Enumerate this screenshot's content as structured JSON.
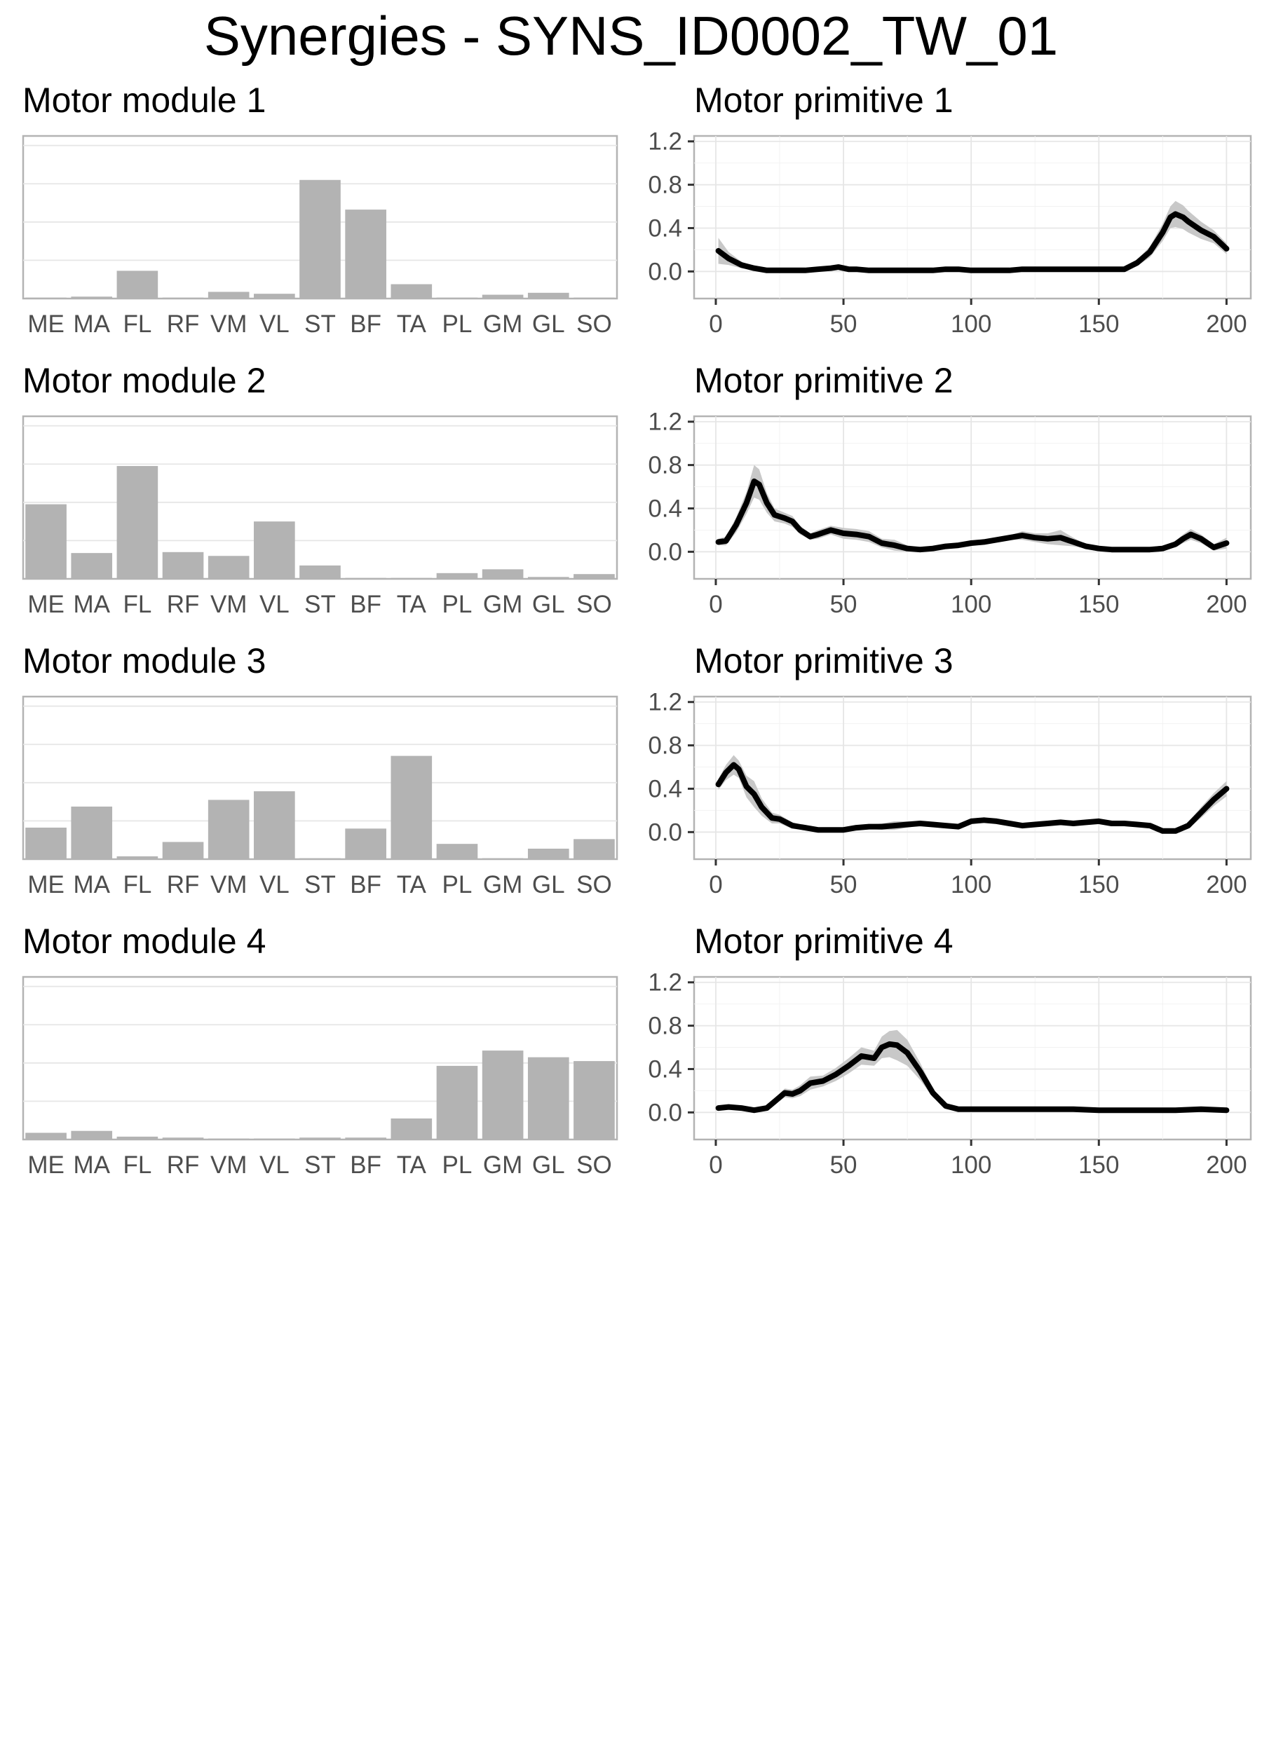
{
  "figure": {
    "title": "Synergies - SYNS_ID0002_TW_01"
  },
  "chart_data": [
    {
      "type": "bar",
      "title": "Motor module 1",
      "categories": [
        "ME",
        "MA",
        "FL",
        "RF",
        "VM",
        "VL",
        "ST",
        "BF",
        "TA",
        "PL",
        "GM",
        "GL",
        "SO"
      ],
      "values": [
        0.01,
        0.02,
        0.29,
        0.01,
        0.07,
        0.05,
        1.24,
        0.93,
        0.15,
        0.01,
        0.04,
        0.06,
        0.01
      ],
      "ylim": [
        0,
        1.7
      ],
      "y_tick_labels_shown": false,
      "grid": true
    },
    {
      "type": "area",
      "title": "Motor primitive 1",
      "x": [
        1,
        5,
        10,
        15,
        20,
        25,
        30,
        35,
        40,
        45,
        48,
        52,
        55,
        60,
        65,
        70,
        75,
        80,
        85,
        90,
        95,
        100,
        105,
        110,
        115,
        120,
        125,
        130,
        135,
        140,
        145,
        150,
        155,
        160,
        165,
        170,
        175,
        178,
        180,
        183,
        185,
        190,
        195,
        200
      ],
      "series": [
        {
          "values": [
            0.19,
            0.12,
            0.06,
            0.03,
            0.01,
            0.01,
            0.01,
            0.01,
            0.02,
            0.03,
            0.04,
            0.02,
            0.02,
            0.01,
            0.01,
            0.01,
            0.01,
            0.01,
            0.01,
            0.02,
            0.02,
            0.01,
            0.01,
            0.01,
            0.01,
            0.02,
            0.02,
            0.02,
            0.02,
            0.02,
            0.02,
            0.02,
            0.02,
            0.02,
            0.08,
            0.18,
            0.36,
            0.5,
            0.53,
            0.5,
            0.46,
            0.38,
            0.32,
            0.21
          ]
        }
      ],
      "band_halfwidth": [
        0.12,
        0.06,
        0.03,
        0.02,
        0.01,
        0.01,
        0.01,
        0.01,
        0.02,
        0.02,
        0.02,
        0.02,
        0.02,
        0.01,
        0.01,
        0.01,
        0.01,
        0.01,
        0.01,
        0.02,
        0.02,
        0.01,
        0.01,
        0.01,
        0.01,
        0.02,
        0.02,
        0.02,
        0.02,
        0.02,
        0.02,
        0.02,
        0.02,
        0.02,
        0.03,
        0.05,
        0.08,
        0.1,
        0.12,
        0.11,
        0.1,
        0.08,
        0.06,
        0.05
      ],
      "xlim": [
        -8.5,
        209.5
      ],
      "ylim": [
        -0.25,
        1.25
      ],
      "x_ticks": [
        0,
        50,
        100,
        150,
        200
      ],
      "y_ticks": [
        0.0,
        0.4,
        0.8,
        1.2
      ],
      "x_tick_labels": [
        "0",
        "50",
        "100",
        "150",
        "200"
      ],
      "y_tick_labels": [
        "0.0",
        "0.4",
        "0.8",
        "1.2"
      ],
      "grid": true
    },
    {
      "type": "bar",
      "title": "Motor module 2",
      "categories": [
        "ME",
        "MA",
        "FL",
        "RF",
        "VM",
        "VL",
        "ST",
        "BF",
        "TA",
        "PL",
        "GM",
        "GL",
        "SO"
      ],
      "values": [
        0.78,
        0.27,
        1.18,
        0.28,
        0.24,
        0.6,
        0.14,
        0.01,
        0.01,
        0.06,
        0.1,
        0.02,
        0.05
      ],
      "ylim": [
        0,
        1.7
      ],
      "y_tick_labels_shown": false,
      "grid": true
    },
    {
      "type": "area",
      "title": "Motor primitive 2",
      "x": [
        1,
        4,
        8,
        12,
        15,
        17,
        20,
        23,
        27,
        30,
        33,
        37,
        40,
        45,
        50,
        55,
        60,
        65,
        70,
        75,
        80,
        85,
        90,
        95,
        100,
        105,
        110,
        115,
        120,
        125,
        130,
        135,
        140,
        145,
        150,
        155,
        160,
        165,
        170,
        175,
        180,
        183,
        186,
        190,
        195,
        200
      ],
      "series": [
        {
          "values": [
            0.09,
            0.1,
            0.25,
            0.45,
            0.65,
            0.62,
            0.45,
            0.34,
            0.31,
            0.28,
            0.2,
            0.14,
            0.16,
            0.2,
            0.17,
            0.16,
            0.14,
            0.08,
            0.06,
            0.03,
            0.02,
            0.03,
            0.05,
            0.06,
            0.08,
            0.09,
            0.11,
            0.13,
            0.15,
            0.13,
            0.12,
            0.13,
            0.09,
            0.05,
            0.03,
            0.02,
            0.02,
            0.02,
            0.02,
            0.03,
            0.07,
            0.12,
            0.16,
            0.12,
            0.04,
            0.08
          ]
        }
      ],
      "band_halfwidth": [
        0.03,
        0.04,
        0.07,
        0.1,
        0.15,
        0.14,
        0.09,
        0.06,
        0.05,
        0.05,
        0.04,
        0.03,
        0.04,
        0.04,
        0.05,
        0.05,
        0.05,
        0.04,
        0.05,
        0.03,
        0.02,
        0.02,
        0.02,
        0.02,
        0.02,
        0.02,
        0.02,
        0.02,
        0.04,
        0.04,
        0.05,
        0.07,
        0.04,
        0.02,
        0.02,
        0.02,
        0.02,
        0.02,
        0.02,
        0.02,
        0.03,
        0.04,
        0.05,
        0.04,
        0.03,
        0.05
      ],
      "xlim": [
        -8.5,
        209.5
      ],
      "ylim": [
        -0.25,
        1.25
      ],
      "x_ticks": [
        0,
        50,
        100,
        150,
        200
      ],
      "y_ticks": [
        0.0,
        0.4,
        0.8,
        1.2
      ],
      "x_tick_labels": [
        "0",
        "50",
        "100",
        "150",
        "200"
      ],
      "y_tick_labels": [
        "0.0",
        "0.4",
        "0.8",
        "1.2"
      ],
      "grid": true
    },
    {
      "type": "bar",
      "title": "Motor module 3",
      "categories": [
        "ME",
        "MA",
        "FL",
        "RF",
        "VM",
        "VL",
        "ST",
        "BF",
        "TA",
        "PL",
        "GM",
        "GL",
        "SO"
      ],
      "values": [
        0.33,
        0.55,
        0.03,
        0.18,
        0.62,
        0.71,
        0.01,
        0.32,
        1.08,
        0.16,
        0.01,
        0.11,
        0.21
      ],
      "ylim": [
        0,
        1.7
      ],
      "y_tick_labels_shown": false,
      "grid": true
    },
    {
      "type": "area",
      "title": "Motor primitive 3",
      "x": [
        1,
        4,
        7,
        9,
        12,
        15,
        18,
        22,
        25,
        30,
        35,
        40,
        45,
        50,
        55,
        60,
        65,
        70,
        75,
        80,
        85,
        90,
        95,
        100,
        105,
        110,
        115,
        120,
        125,
        130,
        135,
        140,
        145,
        150,
        155,
        160,
        165,
        170,
        175,
        180,
        185,
        190,
        195,
        200
      ],
      "series": [
        {
          "values": [
            0.44,
            0.55,
            0.62,
            0.58,
            0.42,
            0.35,
            0.23,
            0.13,
            0.12,
            0.06,
            0.04,
            0.02,
            0.02,
            0.02,
            0.04,
            0.05,
            0.05,
            0.06,
            0.07,
            0.08,
            0.07,
            0.06,
            0.05,
            0.1,
            0.11,
            0.1,
            0.08,
            0.06,
            0.07,
            0.08,
            0.09,
            0.08,
            0.09,
            0.1,
            0.08,
            0.08,
            0.07,
            0.06,
            0.01,
            0.01,
            0.06,
            0.18,
            0.3,
            0.4
          ]
        }
      ],
      "band_halfwidth": [
        0.05,
        0.07,
        0.09,
        0.08,
        0.1,
        0.12,
        0.08,
        0.05,
        0.04,
        0.03,
        0.02,
        0.02,
        0.02,
        0.02,
        0.02,
        0.02,
        0.03,
        0.04,
        0.03,
        0.02,
        0.02,
        0.02,
        0.02,
        0.02,
        0.02,
        0.02,
        0.02,
        0.02,
        0.02,
        0.02,
        0.02,
        0.02,
        0.02,
        0.02,
        0.02,
        0.02,
        0.02,
        0.02,
        0.02,
        0.02,
        0.03,
        0.05,
        0.06,
        0.07
      ],
      "xlim": [
        -8.5,
        209.5
      ],
      "ylim": [
        -0.25,
        1.25
      ],
      "x_ticks": [
        0,
        50,
        100,
        150,
        200
      ],
      "y_ticks": [
        0.0,
        0.4,
        0.8,
        1.2
      ],
      "x_tick_labels": [
        "0",
        "50",
        "100",
        "150",
        "200"
      ],
      "y_tick_labels": [
        "0.0",
        "0.4",
        "0.8",
        "1.2"
      ],
      "grid": true
    },
    {
      "type": "bar",
      "title": "Motor module 4",
      "categories": [
        "ME",
        "MA",
        "FL",
        "RF",
        "VM",
        "VL",
        "ST",
        "BF",
        "TA",
        "PL",
        "GM",
        "GL",
        "SO"
      ],
      "values": [
        0.07,
        0.09,
        0.03,
        0.02,
        0.01,
        0.01,
        0.02,
        0.02,
        0.22,
        0.77,
        0.93,
        0.86,
        0.82
      ],
      "ylim": [
        0,
        1.7
      ],
      "y_tick_labels_shown": false,
      "grid": true
    },
    {
      "type": "area",
      "title": "Motor primitive 4",
      "x": [
        1,
        5,
        10,
        15,
        20,
        23,
        27,
        30,
        33,
        37,
        42,
        47,
        52,
        57,
        62,
        65,
        68,
        71,
        75,
        80,
        85,
        90,
        95,
        100,
        110,
        120,
        130,
        140,
        150,
        160,
        170,
        180,
        190,
        200
      ],
      "series": [
        {
          "values": [
            0.04,
            0.05,
            0.04,
            0.02,
            0.04,
            0.1,
            0.18,
            0.17,
            0.2,
            0.27,
            0.29,
            0.35,
            0.43,
            0.52,
            0.5,
            0.6,
            0.63,
            0.62,
            0.55,
            0.38,
            0.18,
            0.06,
            0.03,
            0.03,
            0.03,
            0.03,
            0.03,
            0.03,
            0.02,
            0.02,
            0.02,
            0.02,
            0.03,
            0.02
          ]
        }
      ],
      "band_halfwidth": [
        0.02,
        0.02,
        0.02,
        0.02,
        0.02,
        0.03,
        0.04,
        0.04,
        0.05,
        0.06,
        0.05,
        0.06,
        0.07,
        0.08,
        0.07,
        0.1,
        0.12,
        0.14,
        0.12,
        0.08,
        0.04,
        0.02,
        0.01,
        0.01,
        0.01,
        0.01,
        0.01,
        0.01,
        0.01,
        0.01,
        0.01,
        0.01,
        0.01,
        0.01
      ],
      "xlim": [
        -8.5,
        209.5
      ],
      "ylim": [
        -0.25,
        1.25
      ],
      "x_ticks": [
        0,
        50,
        100,
        150,
        200
      ],
      "y_ticks": [
        0.0,
        0.4,
        0.8,
        1.2
      ],
      "x_tick_labels": [
        "0",
        "50",
        "100",
        "150",
        "200"
      ],
      "y_tick_labels": [
        "0.0",
        "0.4",
        "0.8",
        "1.2"
      ],
      "grid": true
    }
  ]
}
